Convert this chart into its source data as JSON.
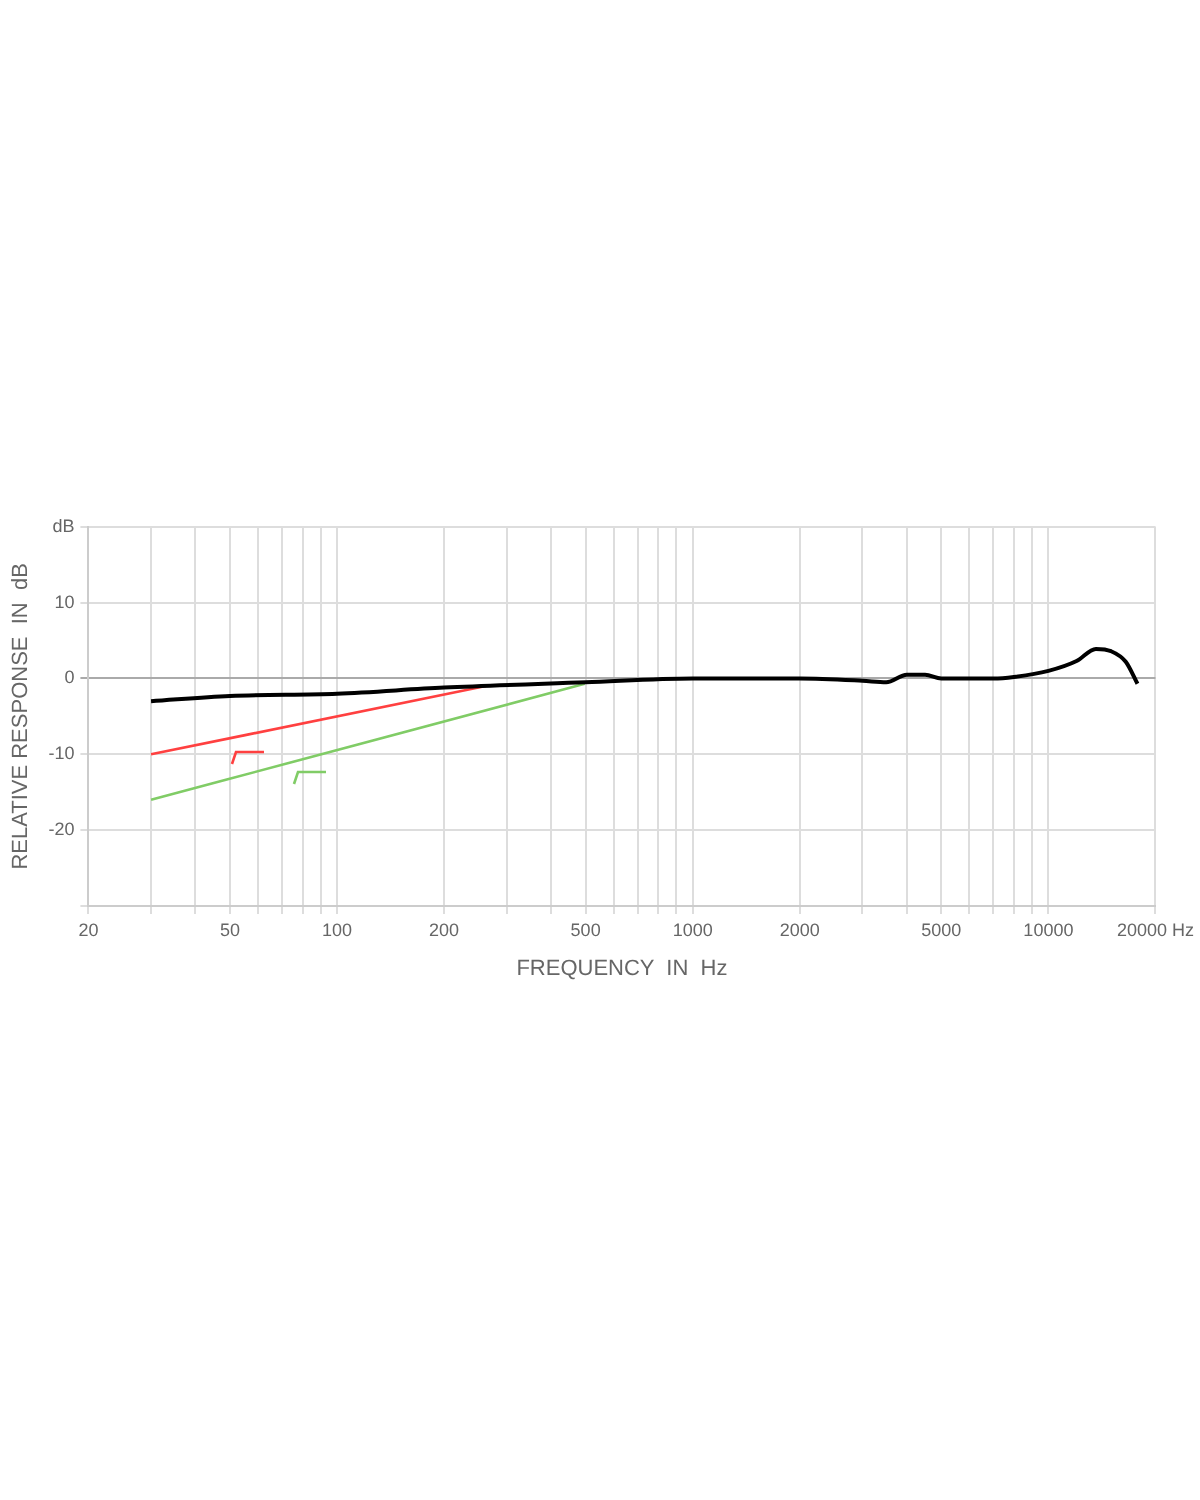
{
  "chart_data": {
    "type": "line",
    "xlabel": "FREQUENCY  IN  Hz",
    "ylabel": "RELATIVE RESPONSE  IN  dB",
    "log": "x",
    "grid": true,
    "legend": false,
    "marker": "none",
    "line_style": "solid",
    "xlim": [
      20,
      20000
    ],
    "ylim": [
      -30,
      20
    ],
    "xticks": [
      20,
      {
        "value": 30,
        "label": null
      },
      {
        "value": 40,
        "label": null
      },
      50,
      {
        "value": 60,
        "label": null
      },
      {
        "value": 70,
        "label": null
      },
      {
        "value": 80,
        "label": null
      },
      {
        "value": 90,
        "label": null
      },
      100,
      200,
      {
        "value": 300,
        "label": null
      },
      {
        "value": 400,
        "label": null
      },
      500,
      {
        "value": 600,
        "label": null
      },
      {
        "value": 700,
        "label": null
      },
      {
        "value": 800,
        "label": null
      },
      {
        "value": 900,
        "label": null
      },
      1000,
      2000,
      {
        "value": 3000,
        "label": null
      },
      {
        "value": 4000,
        "label": null
      },
      5000,
      {
        "value": 6000,
        "label": null
      },
      {
        "value": 7000,
        "label": null
      },
      {
        "value": 8000,
        "label": null
      },
      {
        "value": 9000,
        "label": null
      },
      10000,
      {
        "value": 20000,
        "label": "20000 Hz"
      }
    ],
    "yticks": [
      {
        "value": -30,
        "label": null
      },
      -20,
      -10,
      0,
      10,
      {
        "value": 20,
        "label": "dB"
      }
    ],
    "series": [
      {
        "color": "#000000",
        "x": [
          30,
          50,
          100,
          200,
          500,
          1000,
          2000,
          3000,
          3500,
          4000,
          4500,
          5000,
          7000,
          8000,
          10000,
          12000,
          13600,
          15000,
          16500,
          17800
        ],
        "values": [
          -3,
          -2.3,
          -2,
          -1.2,
          -0.5,
          0,
          0,
          -0.3,
          -0.5,
          0.5,
          0.5,
          0,
          0,
          0.2,
          1,
          2.3,
          3.9,
          3.6,
          2.2,
          -0.7
        ]
      },
      {
        "color": "#ff4040",
        "x": [
          30,
          262
        ],
        "values": [
          -10,
          -1
        ]
      },
      {
        "color": "#80cc66",
        "x": [
          30,
          497
        ],
        "values": [
          -16,
          -0.7
        ]
      }
    ]
  }
}
